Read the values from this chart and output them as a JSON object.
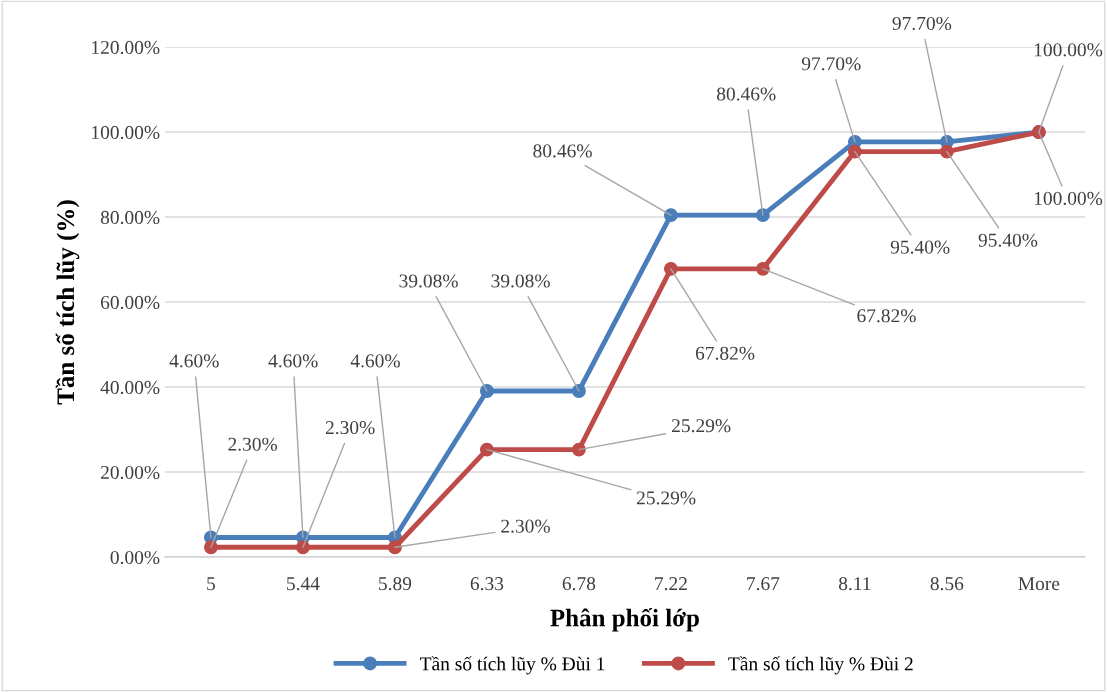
{
  "chart_data": {
    "type": "line",
    "xlabel": "Phân phối lớp",
    "ylabel": "Tần số tích lũy (%)",
    "categories": [
      "5",
      "5.44",
      "5.89",
      "6.33",
      "6.78",
      "7.22",
      "7.67",
      "8.11",
      "8.56",
      "More"
    ],
    "series": [
      {
        "name": "Tần số tích lũy % Đùi 1",
        "color": "#4a7ebb",
        "values": [
          4.6,
          4.6,
          4.6,
          39.08,
          39.08,
          80.46,
          80.46,
          97.7,
          97.7,
          100
        ],
        "value_labels": [
          "4.60%",
          "4.60%",
          "4.60%",
          "39.08%",
          "39.08%",
          "80.46%",
          "80.46%",
          "97.70%",
          "97.70%",
          "100.00%"
        ]
      },
      {
        "name": "Tần số tích lũy % Đùi 2",
        "color": "#be4b48",
        "values": [
          2.3,
          2.3,
          2.3,
          25.29,
          25.29,
          67.82,
          67.82,
          95.4,
          95.4,
          100
        ],
        "value_labels": [
          "2.30%",
          "2.30%",
          "2.30%",
          "25.29%",
          "25.29%",
          "67.82%",
          "67.82%",
          "95.40%",
          "95.40%",
          "100.00%"
        ]
      }
    ],
    "ylim": [
      0,
      120
    ],
    "yticks": [
      {
        "value": 0,
        "label": "0.00%"
      },
      {
        "value": 20,
        "label": "20.00%"
      },
      {
        "value": 40,
        "label": "40.00%"
      },
      {
        "value": 60,
        "label": "60.00%"
      },
      {
        "value": 80,
        "label": "80.00%"
      },
      {
        "value": 100,
        "label": "100.00%"
      },
      {
        "value": 120,
        "label": "120.00%"
      }
    ],
    "grid": "y",
    "legend": "bottom",
    "marker": "circle",
    "line_style": "solid"
  }
}
